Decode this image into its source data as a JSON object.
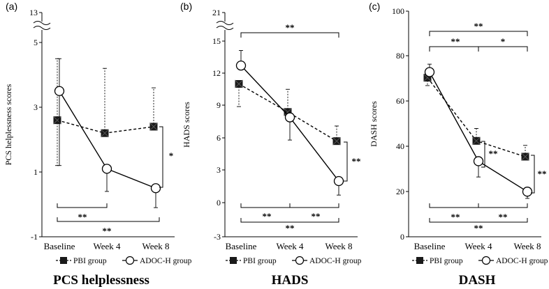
{
  "chart_data": [
    {
      "type": "line",
      "panel_label": "(a)",
      "title": "PCS helplessness",
      "ylabel": "PCS  helplessness scores",
      "categories": [
        "Baseline",
        "Week 4",
        "Week 8"
      ],
      "ylim": [
        -1,
        13
      ],
      "yticks": [
        "-1",
        "1",
        "3",
        "5",
        "13"
      ],
      "axis_break": true,
      "series": [
        {
          "name": "PBI group",
          "values": [
            2.6,
            2.2,
            2.4
          ],
          "err_lo": [
            1.4,
            0.0,
            0.0
          ],
          "err_hi": [
            1.9,
            2.0,
            1.2
          ],
          "style": "dashed-filled-square"
        },
        {
          "name": "ADOC-H group",
          "values": [
            3.5,
            1.1,
            0.5
          ],
          "err_lo": [
            2.3,
            0.7,
            0.6
          ],
          "err_hi": [
            1.0,
            0.0,
            0.0
          ],
          "style": "solid-open-circle"
        }
      ],
      "significance": [
        {
          "label": "*",
          "type": "vertical",
          "at": "Week 8"
        },
        {
          "label": "**",
          "type": "bottom",
          "from": "Baseline",
          "to": "Week 4"
        },
        {
          "label": "**",
          "type": "bottom",
          "from": "Baseline",
          "to": "Week 8"
        }
      ],
      "legend": [
        "PBI group",
        "ADOC-H group"
      ]
    },
    {
      "type": "line",
      "panel_label": "(b)",
      "title": "HADS",
      "ylabel": "HADS scores",
      "categories": [
        "Baseline",
        "Week 4",
        "Week 8"
      ],
      "ylim": [
        -3,
        21
      ],
      "yticks": [
        "-3",
        "0",
        "3",
        "6",
        "9",
        "12",
        "15",
        "21"
      ],
      "axis_break": true,
      "series": [
        {
          "name": "PBI group",
          "values": [
            11.0,
            8.4,
            5.7
          ],
          "err_lo": [
            2.1,
            0.0,
            0.0
          ],
          "err_hi": [
            0.0,
            2.1,
            1.4
          ],
          "style": "dashed-filled-square"
        },
        {
          "name": "ADOC-H group",
          "values": [
            12.7,
            7.9,
            2.0
          ],
          "err_lo": [
            0.0,
            2.1,
            1.3
          ],
          "err_hi": [
            1.4,
            0.0,
            0.0
          ],
          "style": "solid-open-circle"
        }
      ],
      "significance": [
        {
          "label": "**",
          "type": "top",
          "from": "Baseline",
          "to": "Week 8"
        },
        {
          "label": "**",
          "type": "vertical",
          "at": "Week 8"
        },
        {
          "label": "**",
          "type": "bottom",
          "from": "Baseline",
          "to": "Week 4"
        },
        {
          "label": "**",
          "type": "bottom",
          "from": "Week 4",
          "to": "Week 8"
        },
        {
          "label": "**",
          "type": "bottom",
          "from": "Baseline",
          "to": "Week 8"
        }
      ],
      "legend": [
        "PBI group",
        "ADOC-H group"
      ]
    },
    {
      "type": "line",
      "panel_label": "(c)",
      "title": "DASH",
      "ylabel": "DASH scores",
      "categories": [
        "Baseline",
        "Week 4",
        "Week 8"
      ],
      "ylim": [
        0,
        100
      ],
      "yticks": [
        "0",
        "20",
        "40",
        "60",
        "80",
        "100"
      ],
      "axis_break": false,
      "series": [
        {
          "name": "PBI group",
          "values": [
            70.5,
            42.5,
            35.5
          ],
          "err_lo": [
            3.5,
            0.0,
            0.0
          ],
          "err_hi": [
            0.0,
            5.5,
            5.0
          ],
          "style": "dashed-filled-square"
        },
        {
          "name": "ADOC-H group",
          "values": [
            73.0,
            33.5,
            20.0
          ],
          "err_lo": [
            0.0,
            7.0,
            3.0
          ],
          "err_hi": [
            3.5,
            0.0,
            0.0
          ],
          "style": "solid-open-circle"
        }
      ],
      "significance": [
        {
          "label": "**",
          "type": "top",
          "from": "Baseline",
          "to": "Week 8"
        },
        {
          "label": "**",
          "type": "top",
          "from": "Baseline",
          "to": "Week 4"
        },
        {
          "label": "*",
          "type": "top",
          "from": "Week 4",
          "to": "Week 8"
        },
        {
          "label": "**",
          "type": "vertical",
          "at": "Week 4"
        },
        {
          "label": "**",
          "type": "vertical",
          "at": "Week 8"
        },
        {
          "label": "**",
          "type": "bottom",
          "from": "Baseline",
          "to": "Week 4"
        },
        {
          "label": "**",
          "type": "bottom",
          "from": "Week 4",
          "to": "Week 8"
        },
        {
          "label": "**",
          "type": "bottom",
          "from": "Baseline",
          "to": "Week 8"
        }
      ],
      "legend": [
        "PBI group",
        "ADOC-H group"
      ]
    }
  ]
}
